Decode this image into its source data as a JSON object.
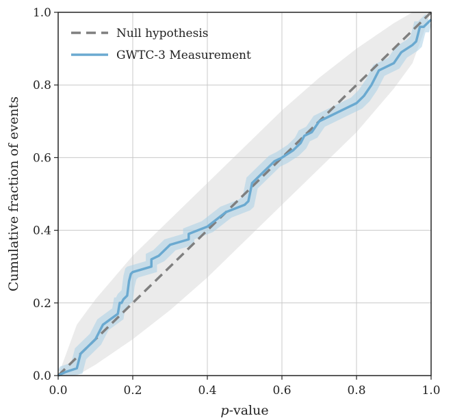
{
  "chart_data": {
    "type": "line",
    "title": "",
    "xlabel_italic": "p",
    "xlabel_rest": "-value",
    "ylabel": "Cumulative fraction of events",
    "xlim": [
      0,
      1
    ],
    "ylim": [
      0,
      1
    ],
    "xticks": [
      "0.0",
      "0.2",
      "0.4",
      "0.6",
      "0.8",
      "1.0"
    ],
    "yticks": [
      "0.0",
      "0.2",
      "0.4",
      "0.6",
      "0.8",
      "1.0"
    ],
    "grid": true,
    "legend_position": "top-left",
    "series": [
      {
        "name": "Null hypothesis",
        "style": "dashed",
        "color": "#7f7f7f",
        "x": [
          0,
          1
        ],
        "y": [
          0,
          1
        ]
      },
      {
        "name": "GWTC-3 Measurement",
        "style": "solid",
        "color": "#6aa9d0",
        "band_color": "#a9cfe6",
        "x": [
          0.0,
          0.02,
          0.05,
          0.06,
          0.08,
          0.1,
          0.11,
          0.12,
          0.14,
          0.16,
          0.165,
          0.17,
          0.175,
          0.185,
          0.19,
          0.195,
          0.2,
          0.25,
          0.25,
          0.27,
          0.3,
          0.35,
          0.35,
          0.4,
          0.45,
          0.5,
          0.51,
          0.52,
          0.55,
          0.58,
          0.6,
          0.63,
          0.65,
          0.66,
          0.68,
          0.7,
          0.72,
          0.8,
          0.82,
          0.84,
          0.85,
          0.86,
          0.9,
          0.92,
          0.95,
          0.96,
          0.97,
          0.98,
          1.0
        ],
        "y": [
          0.0,
          0.01,
          0.02,
          0.06,
          0.08,
          0.1,
          0.12,
          0.14,
          0.155,
          0.17,
          0.2,
          0.2,
          0.21,
          0.22,
          0.26,
          0.28,
          0.285,
          0.3,
          0.32,
          0.33,
          0.36,
          0.375,
          0.39,
          0.41,
          0.45,
          0.47,
          0.48,
          0.53,
          0.56,
          0.59,
          0.6,
          0.62,
          0.64,
          0.66,
          0.67,
          0.7,
          0.71,
          0.75,
          0.77,
          0.8,
          0.82,
          0.84,
          0.86,
          0.89,
          0.91,
          0.92,
          0.96,
          0.96,
          0.98
        ],
        "band_halfwidth": 0.015
      }
    ],
    "envelope": {
      "color": "#ebebeb",
      "x": [
        0.0,
        0.05,
        0.1,
        0.2,
        0.3,
        0.4,
        0.5,
        0.6,
        0.7,
        0.8,
        0.9,
        0.95,
        1.0
      ],
      "y_lower": [
        0.0,
        0.0,
        0.03,
        0.1,
        0.18,
        0.27,
        0.37,
        0.47,
        0.57,
        0.67,
        0.79,
        0.86,
        1.0
      ],
      "y_upper": [
        0.0,
        0.14,
        0.21,
        0.33,
        0.43,
        0.53,
        0.63,
        0.73,
        0.82,
        0.9,
        0.97,
        1.0,
        1.0
      ]
    }
  }
}
